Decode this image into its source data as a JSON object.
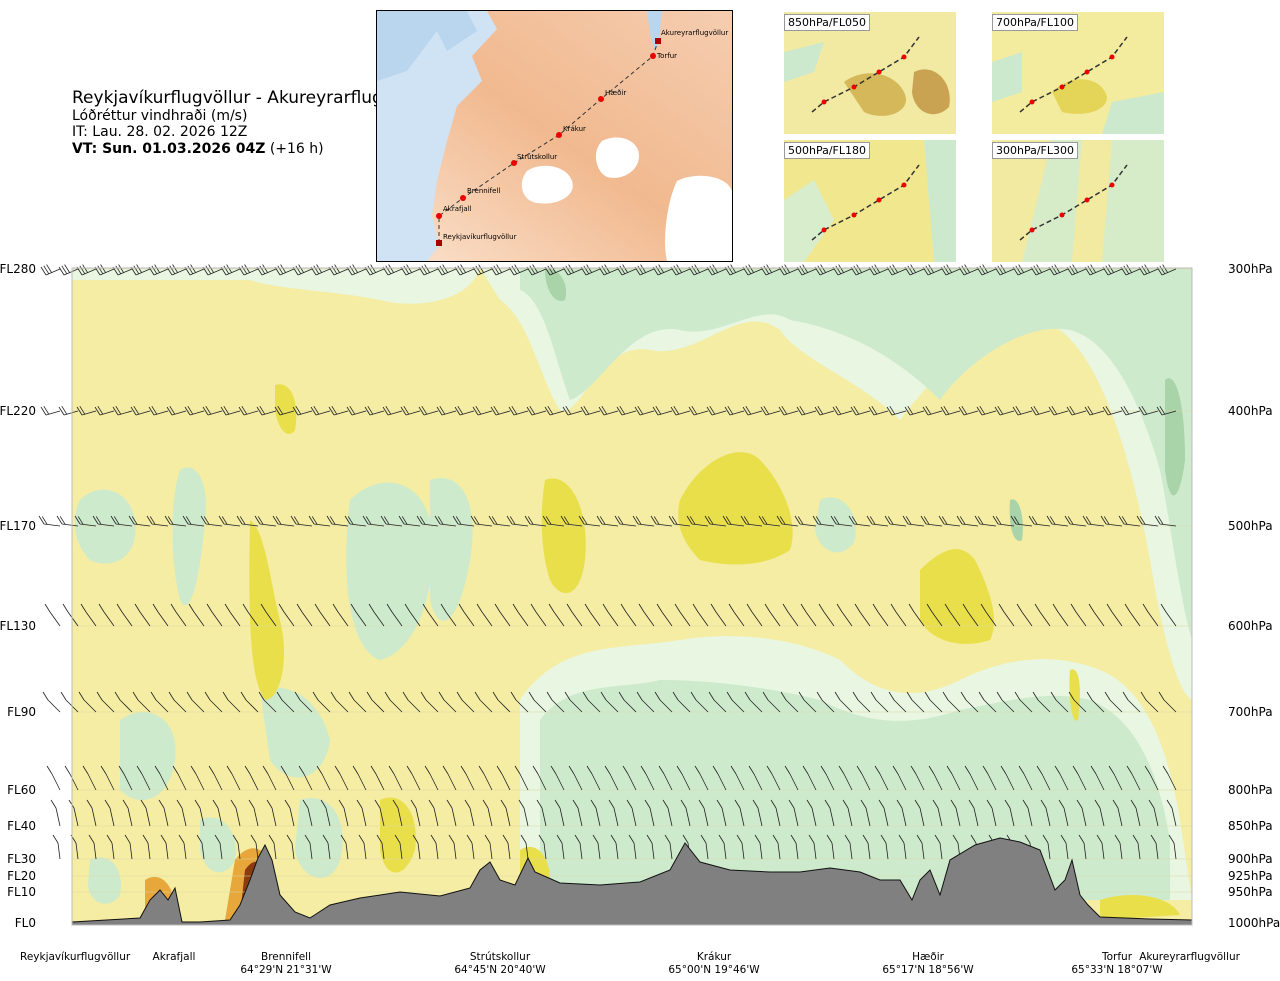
{
  "title": {
    "route": "Reykjavíkurflugvöllur - Akureyrarflugvöllur",
    "parameter": "Lóðréttur vindhraði (m/s)",
    "issue_time": "IT: Lau. 28. 02. 2026 12Z",
    "valid_time_bold": "VT: Sun. 01.03.2026 04Z",
    "valid_time_offset": "(+16 h)"
  },
  "map": {
    "waypoints": [
      "Reykjavíkurflugvöllur",
      "Akrafjall",
      "Brennifell",
      "Strútskollur",
      "Krákur",
      "Hæðir",
      "Torfur",
      "Akureyrarflugvöllur"
    ]
  },
  "insets": [
    {
      "label": "850hPa/FL050"
    },
    {
      "label": "700hPa/FL100"
    },
    {
      "label": "500hPa/FL180"
    },
    {
      "label": "300hPa/FL300"
    }
  ],
  "colors": {
    "background": "#f4eda3",
    "green_light": "#cdeacd",
    "green_mid": "#a9d3a9",
    "green_pale": "#e9f6e1",
    "yellow_strong": "#e9df4b",
    "orange": "#e7a73a",
    "brown": "#8b3b0f",
    "terrain": "#808080"
  },
  "chart_data": {
    "type": "cross-section",
    "title": "Lóðréttur vindhraði (m/s)",
    "flight_levels": [
      {
        "fl": "FL280",
        "hpa": "300hPa"
      },
      {
        "fl": "FL220",
        "hpa": "400hPa"
      },
      {
        "fl": "FL170",
        "hpa": "500hPa"
      },
      {
        "fl": "FL130",
        "hpa": "600hPa"
      },
      {
        "fl": "FL90",
        "hpa": "700hPa"
      },
      {
        "fl": "FL60",
        "hpa": "800hPa"
      },
      {
        "fl": "FL40",
        "hpa": "850hPa"
      },
      {
        "fl": "FL30",
        "hpa": "900hPa"
      },
      {
        "fl": "FL20",
        "hpa": "925hPa"
      },
      {
        "fl": "FL10",
        "hpa": "950hPa"
      },
      {
        "fl": "FL0",
        "hpa": "1000hPa"
      }
    ],
    "waypoints": [
      {
        "name": "Reykjavíkurflugvöllur",
        "coord": ""
      },
      {
        "name": "Akrafjall",
        "coord": ""
      },
      {
        "name": "Brennifell",
        "coord": "64°29'N 21°31'W"
      },
      {
        "name": "Strútskollur",
        "coord": "64°45'N 20°40'W"
      },
      {
        "name": "Krákur",
        "coord": "65°00'N 19°46'W"
      },
      {
        "name": "Hæðir",
        "coord": "65°17'N 18°56'W"
      },
      {
        "name": "Torfur",
        "coord": "65°33'N 18°07'W"
      },
      {
        "name": "Akureyrarflugvöllur",
        "coord": ""
      }
    ]
  }
}
